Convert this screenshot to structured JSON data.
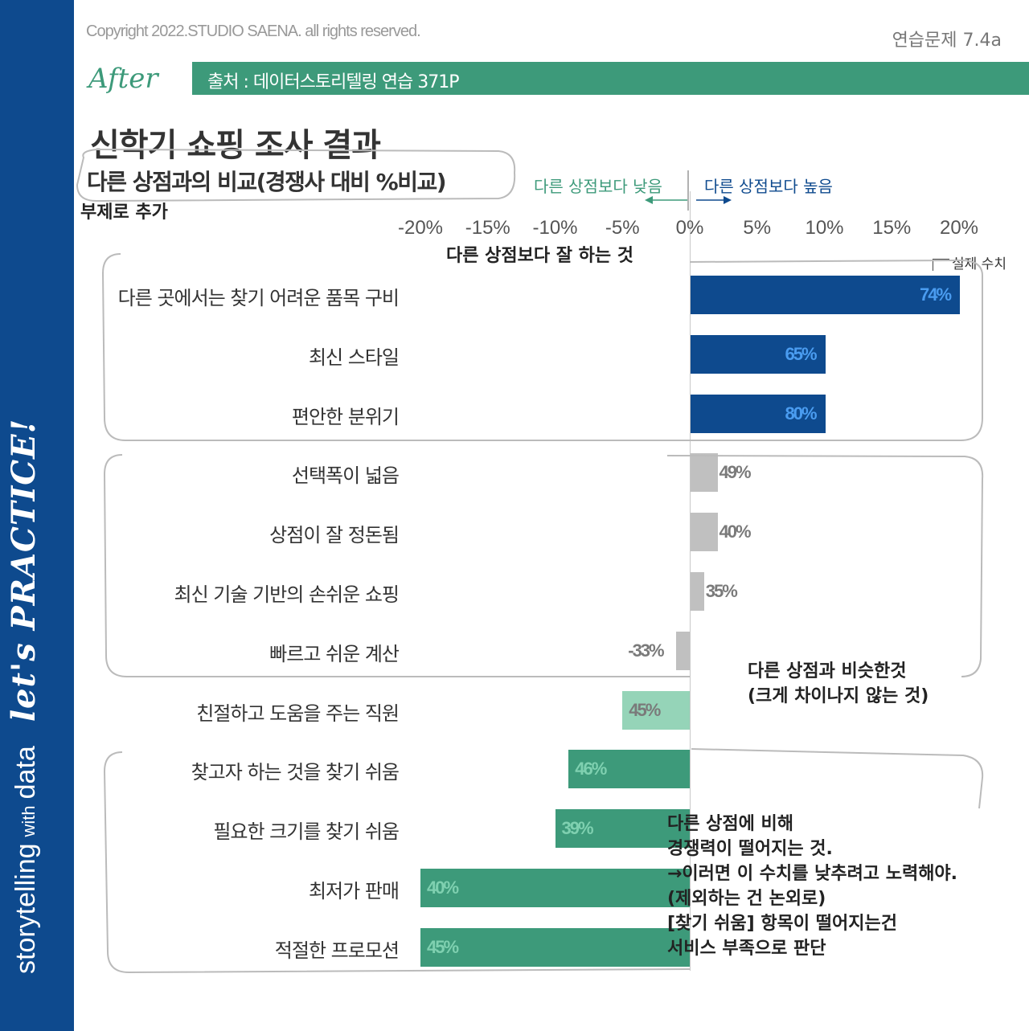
{
  "sidebar": {
    "brand_main": "storytelling",
    "brand_small": "with",
    "brand_end": "data",
    "tagline": "let's PRACTICE!"
  },
  "header": {
    "copyright": "Copyright 2022.STUDIO SAENA. all rights reserved.",
    "exercise_id": "연습문제 7.4a",
    "after_label": "After",
    "source": "출처 : 데이터스토리텔링 연습 371P"
  },
  "title": "신학기 쇼핑 조사 결과",
  "subtitle": "다른 상점과의 비교(경쟁사 대비 %비교)",
  "subtitle_note": "부제로 추가",
  "legend": {
    "lower": "다른 상점보다 낮음",
    "higher": "다른 상점보다 높음"
  },
  "axis_ticks": [
    "-20%",
    "-15%",
    "-10%",
    "-5%",
    "0%",
    "5%",
    "10%",
    "15%",
    "20%"
  ],
  "actual_label": "실제 수치",
  "group_notes": {
    "better": "다른 상점보다 잘 하는 것",
    "similar": "다른 상점과 비슷한것\n(크게 차이나지 않는 것)",
    "worse": "다른 상점에 비해\n경쟁력이 떨어지는 것.\n→이러면 이 수치를 낮추려고 노력해야.\n(제외하는 건 논외로)\n[찾기 쉬움] 항목이 떨어지는건\n서비스 부족으로 판단"
  },
  "colors": {
    "strong_high": "#0e4a8e",
    "neutral": "#c0c0c0",
    "mild_low": "#95d4b8",
    "strong_low": "#3d9a7a",
    "brand_green": "#3d9a7a"
  },
  "chart_data": {
    "type": "bar",
    "orientation": "horizontal",
    "title": "신학기 쇼핑 조사 결과",
    "subtitle": "다른 상점과의 비교(경쟁사 대비 %비교)",
    "xlabel": "",
    "ylabel": "",
    "xlim": [
      -20,
      20
    ],
    "x_ticks": [
      -20,
      -15,
      -10,
      -5,
      0,
      5,
      10,
      15,
      20
    ],
    "grid": false,
    "categories": [
      "다른 곳에서는 찾기 어려운 품목 구비",
      "최신 스타일",
      "편안한 분위기",
      "선택폭이 넓음",
      "상점이 잘 정돈됨",
      "최신 기술 기반의 손쉬운 쇼핑",
      "빠르고 쉬운 계산",
      "친절하고 도움을 주는 직원",
      "찾고자 하는 것을 찾기 쉬움",
      "필요한 크기를 찾기 쉬움",
      "최저가 판매",
      "적절한 프로모션"
    ],
    "values": [
      20,
      10,
      10,
      2,
      2,
      1,
      -1,
      -5,
      -9,
      -10,
      -20,
      -20
    ],
    "actual_labels": [
      "74%",
      "65%",
      "80%",
      "49%",
      "40%",
      "35%",
      "-33%",
      "45%",
      "46%",
      "39%",
      "40%",
      "45%"
    ],
    "color_keys": [
      "strong_high",
      "strong_high",
      "strong_high",
      "neutral",
      "neutral",
      "neutral",
      "neutral",
      "mild_low",
      "strong_low",
      "strong_low",
      "strong_low",
      "strong_low"
    ]
  }
}
